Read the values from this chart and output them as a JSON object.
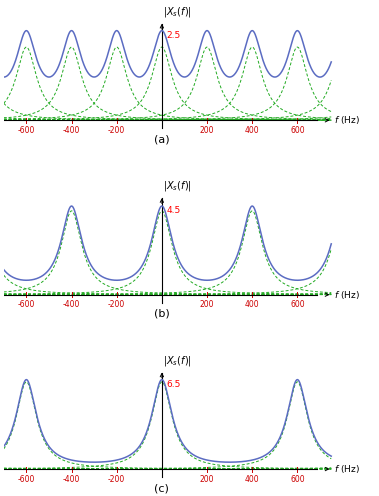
{
  "xlim": [
    -700,
    700
  ],
  "xticks": [
    -600,
    -400,
    -200,
    0,
    200,
    400,
    600
  ],
  "tick_color": "#cc0000",
  "subplots": [
    {
      "fs": 200,
      "peak_value": 2.5,
      "label": "(a)",
      "ylim_top": 2.8,
      "bw": 55
    },
    {
      "fs": 400,
      "peak_value": 4.5,
      "label": "(b)",
      "ylim_top": 5.1,
      "bw": 55
    },
    {
      "fs": 600,
      "peak_value": 6.5,
      "label": "(c)",
      "ylim_top": 7.3,
      "bw": 55
    }
  ],
  "solid_color": "#5B6CC2",
  "dashed_color": "#22AA22",
  "bg_color": "#ffffff",
  "num_f": 3000
}
